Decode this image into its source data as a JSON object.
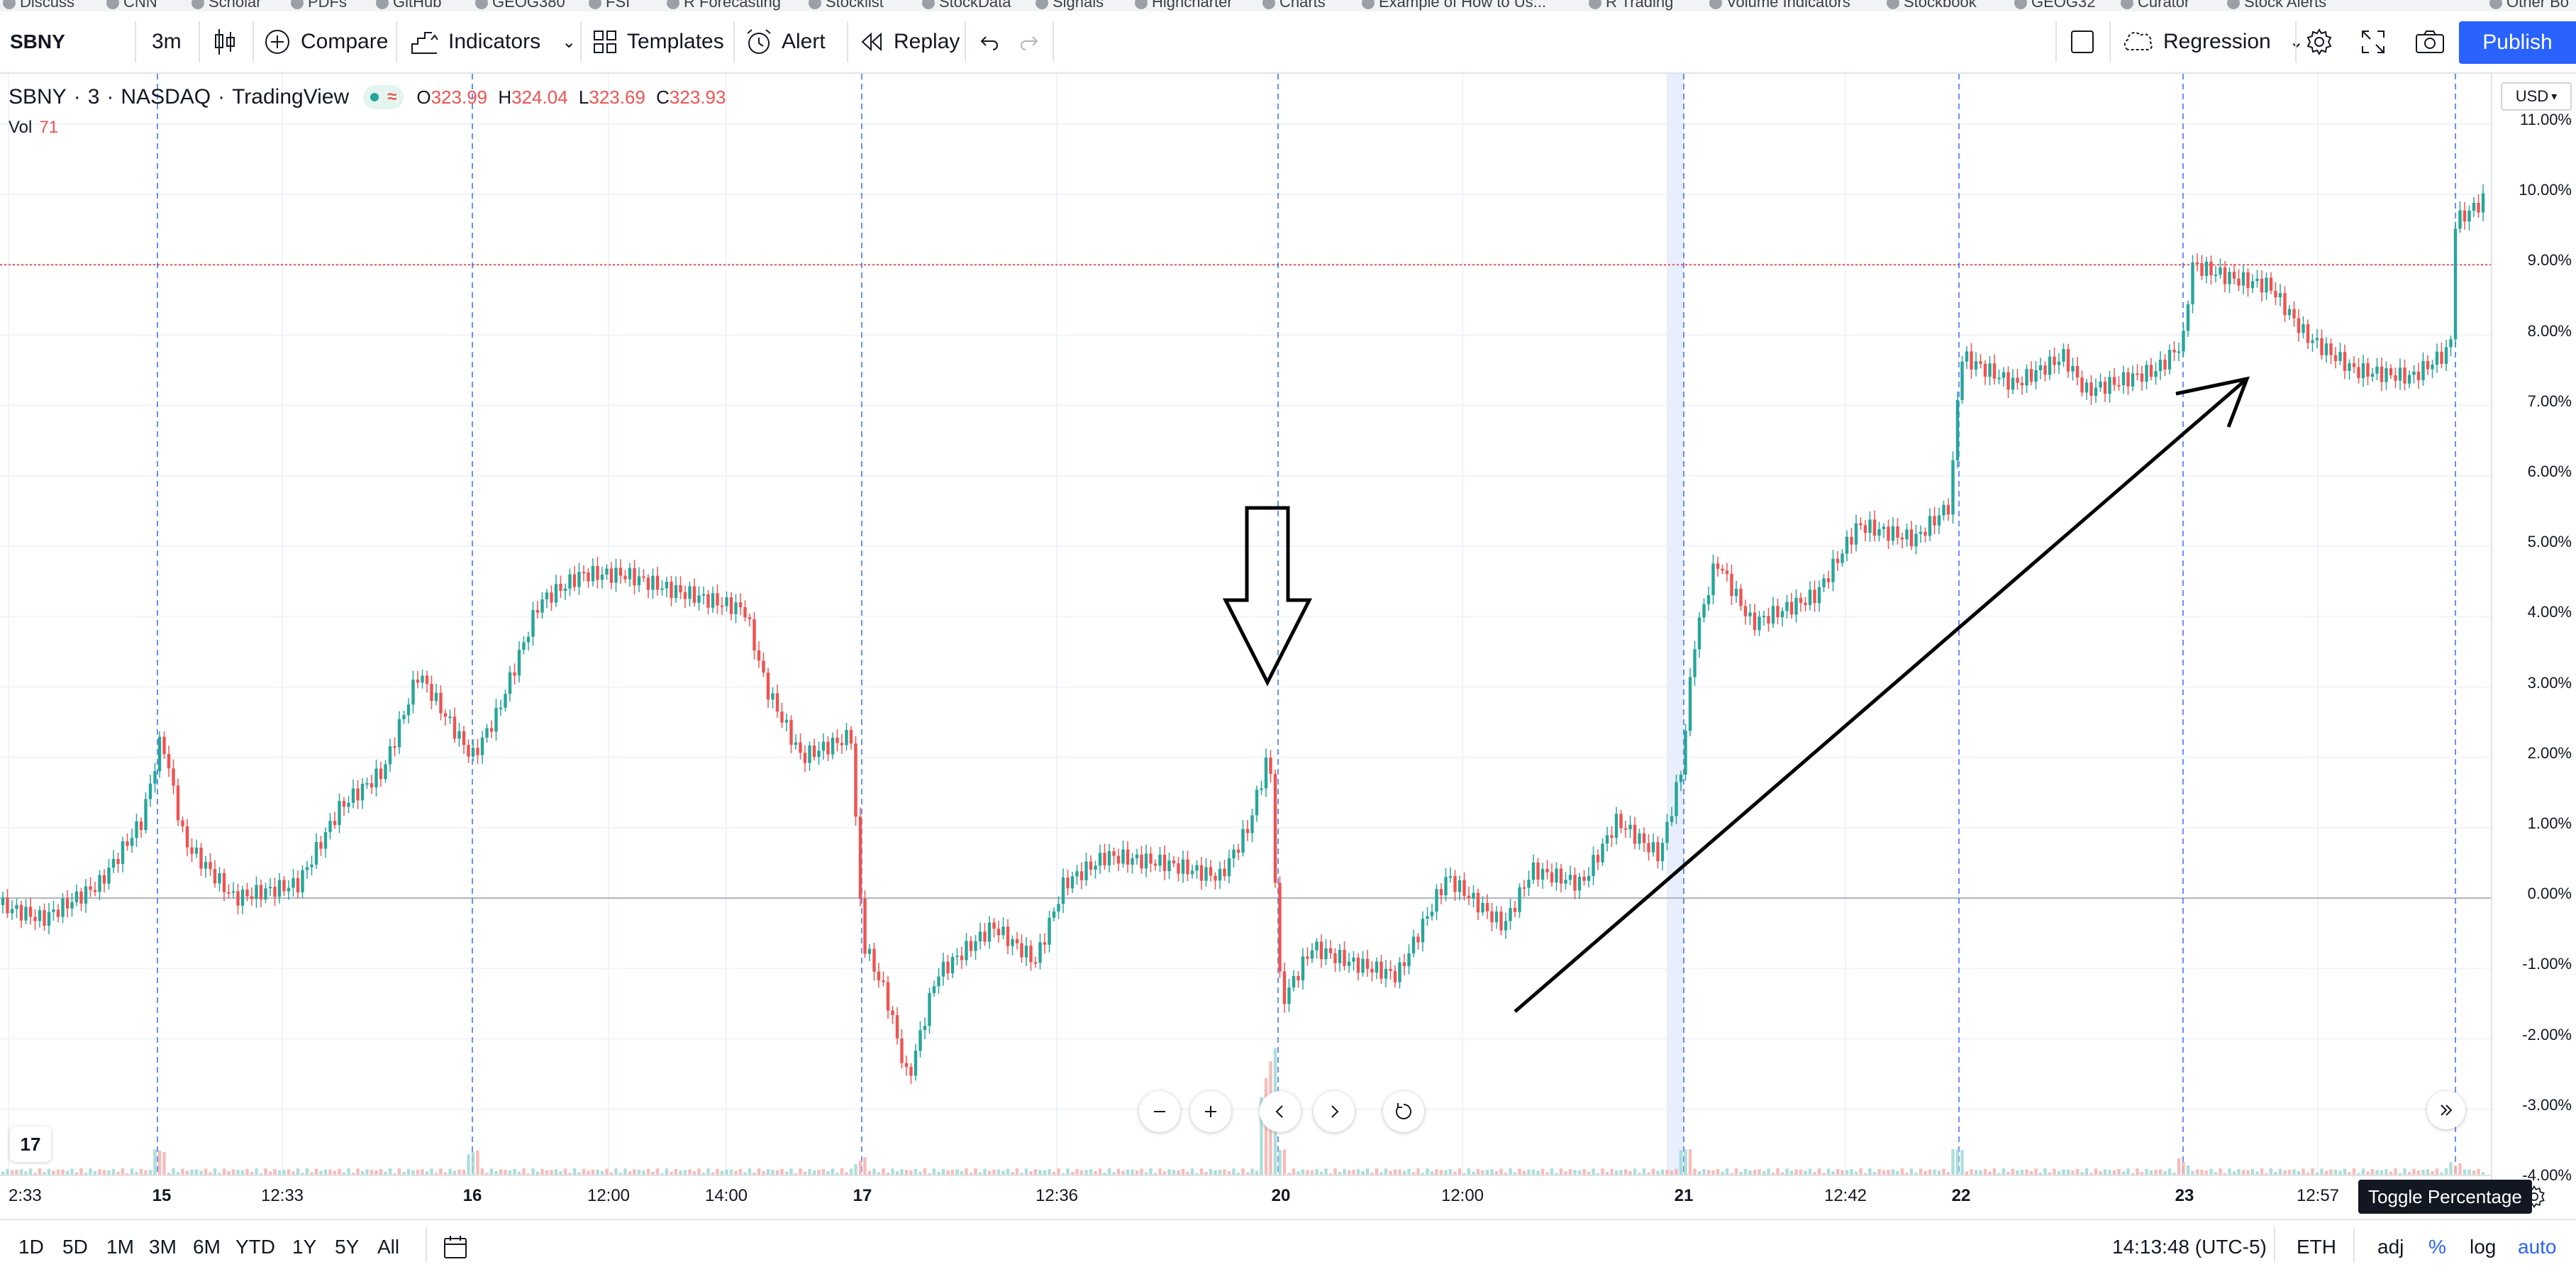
{
  "bookmarks": [
    "Discuss",
    "CNN",
    "Scholar",
    "PDFs",
    "GitHub",
    "GEOG380",
    "FSI",
    "R Forecasting",
    "Stocklist",
    "StockData",
    "Signals",
    "Highcharter",
    "Charts",
    "Example of How to Us...",
    "R Trading",
    "Volume Indicators",
    "Stockbook",
    "GEOG32",
    "Curator",
    "Stock Alerts",
    "Other Bo"
  ],
  "toolbar": {
    "symbol": "SBNY",
    "interval": "3m",
    "compare": "Compare",
    "indicators": "Indicators",
    "templates": "Templates",
    "alert": "Alert",
    "replay": "Replay",
    "drawing_tool": "Regression",
    "publish": "Publish"
  },
  "legend": {
    "symbol": "SBNY",
    "interval": "3",
    "exchange": "NASDAQ",
    "source": "TradingView",
    "open_label": "O",
    "open": "323.99",
    "high_label": "H",
    "high": "324.04",
    "low_label": "L",
    "low": "323.69",
    "close_label": "C",
    "close": "323.93",
    "vol_label": "Vol",
    "vol_value": "71"
  },
  "price_axis": {
    "currency": "USD",
    "labels": [
      "11.00%",
      "10.00%",
      "9.00%",
      "8.00%",
      "7.00%",
      "6.00%",
      "5.00%",
      "4.00%",
      "3.00%",
      "2.00%",
      "1.00%",
      "0.00%",
      "-1.00%",
      "-2.00%",
      "-3.00%",
      "-4.00%"
    ]
  },
  "time_axis": {
    "labels": [
      {
        "text": "2:33",
        "bold": false
      },
      {
        "text": "15",
        "bold": true
      },
      {
        "text": "12:33",
        "bold": false
      },
      {
        "text": "16",
        "bold": true
      },
      {
        "text": "12:00",
        "bold": false
      },
      {
        "text": "14:00",
        "bold": false
      },
      {
        "text": "17",
        "bold": true
      },
      {
        "text": "12:36",
        "bold": false
      },
      {
        "text": "20",
        "bold": true
      },
      {
        "text": "12:00",
        "bold": false
      },
      {
        "text": "21",
        "bold": true
      },
      {
        "text": "12:42",
        "bold": false
      },
      {
        "text": "22",
        "bold": true
      },
      {
        "text": "23",
        "bold": true
      },
      {
        "text": "12:57",
        "bold": false
      }
    ]
  },
  "bottom_bar": {
    "ranges": [
      "1D",
      "5D",
      "1M",
      "3M",
      "6M",
      "YTD",
      "1Y",
      "5Y",
      "All"
    ],
    "clock": "14:13:48 (UTC-5)",
    "session": "ETH",
    "adj": "adj",
    "percent": "%",
    "log": "log",
    "auto": "auto"
  },
  "tooltip": "Toggle Percentage",
  "logo": "17",
  "colors": {
    "up": "#26a69a",
    "down": "#ef5350",
    "accent": "#2962ff",
    "session_line": "#2962ff",
    "annotation": "#000000"
  }
}
